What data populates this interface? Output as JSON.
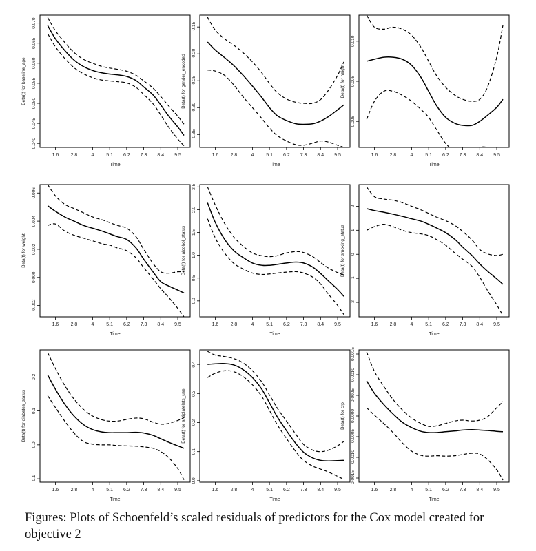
{
  "caption": "Figures: Plots of Schoenfeld’s scaled residuals of predictors for the Cox model created for objective 2",
  "colors": {
    "line": "#000000",
    "frame": "#000000",
    "background": "#ffffff"
  },
  "chart_data": [
    {
      "type": "line",
      "xlabel": "Time",
      "ylabel": "Beta(t) for baseline_age",
      "x_ticks": [
        "1.6",
        "2.8",
        "4",
        "5.1",
        "6.2",
        "7.3",
        "8.4",
        "9.5"
      ],
      "y_ticks": [
        "0.040",
        "0.045",
        "0.050",
        "0.055",
        "0.060",
        "0.065",
        "0.070"
      ],
      "ylim": [
        0.039,
        0.072
      ],
      "x": [
        1.1,
        1.6,
        2.2,
        2.8,
        3.4,
        4,
        4.6,
        5.1,
        5.6,
        6.2,
        6.8,
        7.3,
        7.9,
        8.4,
        8.9,
        9.5,
        9.9
      ],
      "series": [
        {
          "role": "upper",
          "style": "dashed",
          "values": [
            0.0714,
            0.0681,
            0.0652,
            0.0627,
            0.061,
            0.06,
            0.0592,
            0.0588,
            0.0585,
            0.058,
            0.057,
            0.0556,
            0.0538,
            0.0517,
            0.0494,
            0.0468,
            0.0448
          ]
        },
        {
          "role": "estimate",
          "style": "solid",
          "values": [
            0.0694,
            0.0661,
            0.0632,
            0.0608,
            0.0592,
            0.0582,
            0.0576,
            0.0573,
            0.0571,
            0.0567,
            0.0557,
            0.0541,
            0.0521,
            0.0496,
            0.0469,
            0.0441,
            0.042
          ]
        },
        {
          "role": "lower",
          "style": "dashed",
          "values": [
            0.0674,
            0.0641,
            0.0612,
            0.0589,
            0.0574,
            0.0564,
            0.0558,
            0.0556,
            0.0554,
            0.0551,
            0.054,
            0.0522,
            0.0499,
            0.0471,
            0.0441,
            0.0411,
            0.0394
          ]
        }
      ]
    },
    {
      "type": "line",
      "xlabel": "Time",
      "ylabel": "Beta(t) for gender_encoded",
      "x_ticks": [
        "1.6",
        "2.8",
        "4",
        "5.1",
        "6.2",
        "7.3",
        "8.4",
        "9.5"
      ],
      "y_ticks": [
        "-0.35",
        "-0.30",
        "-0.25",
        "-0.20",
        "-0.15"
      ],
      "ylim": [
        -0.374,
        -0.128
      ],
      "x": [
        1.1,
        1.6,
        2.2,
        2.8,
        3.4,
        4,
        4.6,
        5.1,
        5.6,
        6.2,
        6.8,
        7.3,
        7.9,
        8.4,
        8.9,
        9.5,
        9.9
      ],
      "series": [
        {
          "role": "upper",
          "style": "dashed",
          "values": [
            -0.132,
            -0.156,
            -0.172,
            -0.184,
            -0.198,
            -0.215,
            -0.235,
            -0.255,
            -0.272,
            -0.284,
            -0.29,
            -0.292,
            -0.292,
            -0.285,
            -0.268,
            -0.24,
            -0.215
          ]
        },
        {
          "role": "estimate",
          "style": "solid",
          "values": [
            -0.178,
            -0.193,
            -0.207,
            -0.222,
            -0.24,
            -0.26,
            -0.281,
            -0.3,
            -0.315,
            -0.324,
            -0.33,
            -0.331,
            -0.33,
            -0.325,
            -0.317,
            -0.304,
            -0.295
          ]
        },
        {
          "role": "lower",
          "style": "dashed",
          "values": [
            -0.23,
            -0.232,
            -0.24,
            -0.258,
            -0.28,
            -0.3,
            -0.32,
            -0.338,
            -0.352,
            -0.362,
            -0.369,
            -0.37,
            -0.366,
            -0.362,
            -0.364,
            -0.37,
            -0.374
          ]
        }
      ]
    },
    {
      "type": "line",
      "xlabel": "Time",
      "ylabel": "Beta(t) for height",
      "x_ticks": [
        "1.6",
        "2.8",
        "4",
        "5.1",
        "6.2",
        "7.3",
        "8.4",
        "9.5"
      ],
      "y_ticks": [
        "0.006",
        "0.008",
        "0.010"
      ],
      "ylim": [
        0.0047,
        0.0113
      ],
      "x": [
        1.1,
        1.6,
        2.2,
        2.8,
        3.4,
        4,
        4.6,
        5.1,
        5.6,
        6.2,
        6.8,
        7.3,
        7.9,
        8.4,
        8.9,
        9.5,
        9.9
      ],
      "series": [
        {
          "role": "upper",
          "style": "dashed",
          "values": [
            0.0113,
            0.0107,
            0.0106,
            0.0107,
            0.0106,
            0.0103,
            0.0097,
            0.009,
            0.0083,
            0.0077,
            0.0073,
            0.0071,
            0.007,
            0.0071,
            0.0077,
            0.0092,
            0.0108
          ]
        },
        {
          "role": "estimate",
          "style": "solid",
          "values": [
            0.009,
            0.0091,
            0.0092,
            0.0092,
            0.0091,
            0.0088,
            0.0082,
            0.0075,
            0.0068,
            0.0062,
            0.0059,
            0.0058,
            0.0058,
            0.006,
            0.0063,
            0.0067,
            0.0071
          ]
        },
        {
          "role": "lower",
          "style": "dashed",
          "values": [
            0.0061,
            0.007,
            0.0075,
            0.0075,
            0.0073,
            0.007,
            0.0066,
            0.0062,
            0.0056,
            0.0049,
            0.0045,
            0.0044,
            0.0045,
            0.0047,
            0.0047,
            0.0045,
            0.0043
          ]
        }
      ]
    },
    {
      "type": "line",
      "xlabel": "Time",
      "ylabel": "Beta(t) for weight",
      "x_ticks": [
        "1.6",
        "2.8",
        "4",
        "5.1",
        "6.2",
        "7.3",
        "8.4",
        "9.5"
      ],
      "y_ticks": [
        "-0.002",
        "0.000",
        "0.002",
        "0.004",
        "0.006"
      ],
      "ylim": [
        -0.0028,
        0.0066
      ],
      "x": [
        1.1,
        1.6,
        2.2,
        2.8,
        3.4,
        4,
        4.6,
        5.1,
        5.6,
        6.2,
        6.8,
        7.3,
        7.9,
        8.4,
        8.9,
        9.5,
        9.9
      ],
      "series": [
        {
          "role": "upper",
          "style": "dashed",
          "values": [
            0.0066,
            0.0058,
            0.0052,
            0.0049,
            0.0046,
            0.0043,
            0.0041,
            0.0039,
            0.0037,
            0.0035,
            0.0029,
            0.002,
            0.001,
            0.0004,
            0.0003,
            0.0004,
            0.0004
          ]
        },
        {
          "role": "estimate",
          "style": "solid",
          "values": [
            0.0051,
            0.0047,
            0.0043,
            0.004,
            0.0037,
            0.0035,
            0.0033,
            0.0031,
            0.0029,
            0.0027,
            0.0021,
            0.0013,
            0.0004,
            -0.0003,
            -0.0006,
            -0.0009,
            -0.0011
          ]
        },
        {
          "role": "lower",
          "style": "dashed",
          "values": [
            0.0037,
            0.0038,
            0.0033,
            0.003,
            0.0028,
            0.0026,
            0.0024,
            0.0023,
            0.0021,
            0.0019,
            0.0014,
            0.0007,
            -0.0001,
            -0.0008,
            -0.0014,
            -0.0022,
            -0.0028
          ]
        }
      ]
    },
    {
      "type": "line",
      "xlabel": "Time",
      "ylabel": "Beta(t) for alcohol_status",
      "x_ticks": [
        "1.6",
        "2.8",
        "4",
        "5.1",
        "6.2",
        "7.3",
        "8.4",
        "9.5"
      ],
      "y_ticks": [
        "0.0",
        "0.5",
        "1.0",
        "1.5",
        "2.0",
        "2.5"
      ],
      "ylim": [
        -0.35,
        2.55
      ],
      "x": [
        1.1,
        1.6,
        2.2,
        2.8,
        3.4,
        4,
        4.6,
        5.1,
        5.6,
        6.2,
        6.8,
        7.3,
        7.9,
        8.4,
        8.9,
        9.5,
        9.9
      ],
      "series": [
        {
          "role": "upper",
          "style": "dashed",
          "values": [
            2.5,
            2.1,
            1.7,
            1.4,
            1.2,
            1.05,
            0.99,
            0.97,
            0.99,
            1.05,
            1.08,
            1.06,
            0.97,
            0.84,
            0.72,
            0.62,
            0.57
          ]
        },
        {
          "role": "estimate",
          "style": "solid",
          "values": [
            2.15,
            1.72,
            1.35,
            1.1,
            0.95,
            0.83,
            0.78,
            0.78,
            0.8,
            0.83,
            0.85,
            0.83,
            0.74,
            0.6,
            0.44,
            0.25,
            0.1
          ]
        },
        {
          "role": "lower",
          "style": "dashed",
          "values": [
            1.8,
            1.38,
            1.05,
            0.82,
            0.7,
            0.61,
            0.58,
            0.59,
            0.61,
            0.63,
            0.64,
            0.61,
            0.52,
            0.37,
            0.15,
            -0.1,
            -0.3
          ]
        }
      ]
    },
    {
      "type": "line",
      "xlabel": "Time",
      "ylabel": "Beta(t) for smoking_status",
      "x_ticks": [
        "1.6",
        "2.8",
        "4",
        "5.1",
        "6.2",
        "7.3",
        "8.4",
        "9.5"
      ],
      "y_ticks": [
        "-2",
        "-1",
        "0",
        "1",
        "2"
      ],
      "ylim": [
        -2.6,
        2.9
      ],
      "x": [
        1.1,
        1.6,
        2.2,
        2.8,
        3.4,
        4,
        4.6,
        5.1,
        5.6,
        6.2,
        6.8,
        7.3,
        7.9,
        8.4,
        8.9,
        9.5,
        9.9
      ],
      "series": [
        {
          "role": "upper",
          "style": "dashed",
          "values": [
            2.8,
            2.4,
            2.3,
            2.25,
            2.15,
            2.0,
            1.85,
            1.7,
            1.55,
            1.4,
            1.2,
            0.95,
            0.6,
            0.2,
            0.02,
            -0.05,
            0.0
          ]
        },
        {
          "role": "estimate",
          "style": "solid",
          "values": [
            1.9,
            1.82,
            1.75,
            1.67,
            1.58,
            1.48,
            1.38,
            1.25,
            1.1,
            0.9,
            0.62,
            0.3,
            -0.05,
            -0.4,
            -0.7,
            -1.02,
            -1.25
          ]
        },
        {
          "role": "lower",
          "style": "dashed",
          "values": [
            1.0,
            1.15,
            1.25,
            1.15,
            1.0,
            0.9,
            0.85,
            0.78,
            0.62,
            0.38,
            0.05,
            -0.2,
            -0.5,
            -0.95,
            -1.5,
            -2.1,
            -2.55
          ]
        }
      ]
    },
    {
      "type": "line",
      "xlabel": "Time",
      "ylabel": "Beta(t) for diabetes_status",
      "x_ticks": [
        "1.6",
        "2.8",
        "4",
        "5.1",
        "6.2",
        "7.3",
        "8.4",
        "9.5"
      ],
      "y_ticks": [
        "-0.1",
        "0.0",
        "0.1",
        "0.2"
      ],
      "ylim": [
        -0.11,
        0.28
      ],
      "x": [
        1.1,
        1.6,
        2.2,
        2.8,
        3.4,
        4,
        4.6,
        5.1,
        5.6,
        6.2,
        6.8,
        7.3,
        7.9,
        8.4,
        8.9,
        9.5,
        9.9
      ],
      "series": [
        {
          "role": "upper",
          "style": "dashed",
          "values": [
            0.272,
            0.225,
            0.175,
            0.135,
            0.105,
            0.085,
            0.074,
            0.07,
            0.07,
            0.075,
            0.079,
            0.077,
            0.067,
            0.061,
            0.063,
            0.072,
            0.08
          ]
        },
        {
          "role": "estimate",
          "style": "solid",
          "values": [
            0.206,
            0.164,
            0.12,
            0.085,
            0.06,
            0.045,
            0.038,
            0.036,
            0.036,
            0.036,
            0.037,
            0.035,
            0.028,
            0.018,
            0.008,
            -0.003,
            -0.01
          ]
        },
        {
          "role": "lower",
          "style": "dashed",
          "values": [
            0.145,
            0.11,
            0.07,
            0.035,
            0.01,
            0.002,
            0.0,
            0.0,
            -0.002,
            -0.003,
            -0.004,
            -0.006,
            -0.01,
            -0.02,
            -0.037,
            -0.07,
            -0.103
          ]
        }
      ]
    },
    {
      "type": "line",
      "xlabel": "Time",
      "ylabel": "Beta(t) for antiplatelets_use",
      "x_ticks": [
        "1.6",
        "2.8",
        "4",
        "5.1",
        "6.2",
        "7.3",
        "8.4",
        "9.5"
      ],
      "y_ticks": [
        "0.0",
        "0.1",
        "0.2",
        "0.3",
        "0.4"
      ],
      "ylim": [
        -0.005,
        0.45
      ],
      "x": [
        1.1,
        1.6,
        2.2,
        2.8,
        3.4,
        4,
        4.6,
        5.1,
        5.6,
        6.2,
        6.8,
        7.3,
        7.9,
        8.4,
        8.9,
        9.5,
        9.9
      ],
      "series": [
        {
          "role": "upper",
          "style": "dashed",
          "values": [
            0.445,
            0.432,
            0.427,
            0.42,
            0.405,
            0.378,
            0.34,
            0.295,
            0.25,
            0.205,
            0.16,
            0.125,
            0.105,
            0.1,
            0.105,
            0.12,
            0.135
          ]
        },
        {
          "role": "estimate",
          "style": "solid",
          "values": [
            0.4,
            0.402,
            0.403,
            0.398,
            0.382,
            0.355,
            0.315,
            0.268,
            0.22,
            0.172,
            0.128,
            0.098,
            0.078,
            0.07,
            0.068,
            0.069,
            0.07
          ]
        },
        {
          "role": "lower",
          "style": "dashed",
          "values": [
            0.355,
            0.37,
            0.378,
            0.375,
            0.358,
            0.33,
            0.29,
            0.242,
            0.193,
            0.145,
            0.1,
            0.07,
            0.05,
            0.04,
            0.03,
            0.015,
            0.005
          ]
        }
      ]
    },
    {
      "type": "line",
      "xlabel": "Time",
      "ylabel": "Beta(t) for crp",
      "x_ticks": [
        "1.6",
        "2.8",
        "4",
        "5.1",
        "6.2",
        "7.3",
        "8.4",
        "9.5"
      ],
      "y_ticks": [
        "-0.0015",
        "-0.0010",
        "-0.0005",
        "0.0000",
        "0.0005",
        "0.0010",
        "0.0015"
      ],
      "ylim": [
        -0.0016,
        0.0016
      ],
      "x": [
        1.1,
        1.6,
        2.2,
        2.8,
        3.4,
        4,
        4.6,
        5.1,
        5.6,
        6.2,
        6.8,
        7.3,
        7.9,
        8.4,
        8.9,
        9.5,
        9.9
      ],
      "series": [
        {
          "role": "upper",
          "style": "dashed",
          "values": [
            0.00155,
            0.00108,
            0.00072,
            0.0004,
            0.00015,
            -5e-05,
            -0.00018,
            -0.00025,
            -0.00024,
            -0.00018,
            -0.00012,
            -0.0001,
            -0.00012,
            -0.0001,
            -2e-05,
            0.0002,
            0.00035
          ]
        },
        {
          "role": "estimate",
          "style": "solid",
          "values": [
            0.00085,
            0.00055,
            0.00028,
            5e-05,
            -0.00015,
            -0.00028,
            -0.00037,
            -0.0004,
            -0.0004,
            -0.00038,
            -0.00036,
            -0.00034,
            -0.00033,
            -0.00034,
            -0.00035,
            -0.00037,
            -0.00038
          ]
        },
        {
          "role": "lower",
          "style": "dashed",
          "values": [
            0.0002,
            2e-05,
            -0.00018,
            -0.0004,
            -0.00065,
            -0.00085,
            -0.00095,
            -0.00097,
            -0.00096,
            -0.00097,
            -0.00096,
            -0.00093,
            -0.0009,
            -0.00092,
            -0.00105,
            -0.0013,
            -0.00155
          ]
        }
      ]
    }
  ]
}
